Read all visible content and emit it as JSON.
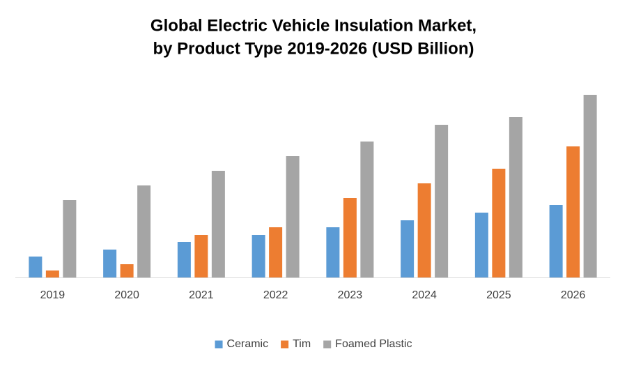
{
  "chart_data": {
    "type": "bar",
    "title": [
      "Global Electric Vehicle Insulation Market,",
      "by Product Type 2019-2026 (USD Billion)"
    ],
    "categories": [
      "2019",
      "2020",
      "2021",
      "2022",
      "2023",
      "2024",
      "2025",
      "2026"
    ],
    "series": [
      {
        "name": "Ceramic",
        "color": "#5b9bd5",
        "values": [
          3.0,
          4.0,
          5.1,
          6.1,
          7.2,
          8.2,
          9.3,
          10.4
        ]
      },
      {
        "name": "Tim",
        "color": "#ed7d31",
        "values": [
          1.0,
          1.9,
          6.1,
          7.2,
          11.4,
          13.5,
          15.6,
          18.8
        ]
      },
      {
        "name": "Foamed Plastic",
        "color": "#a5a5a5",
        "values": [
          11.1,
          13.2,
          15.3,
          17.4,
          19.5,
          21.9,
          23.0,
          26.2
        ]
      }
    ],
    "ylim": [
      0,
      27
    ],
    "grid": false,
    "legend": "bottom"
  }
}
